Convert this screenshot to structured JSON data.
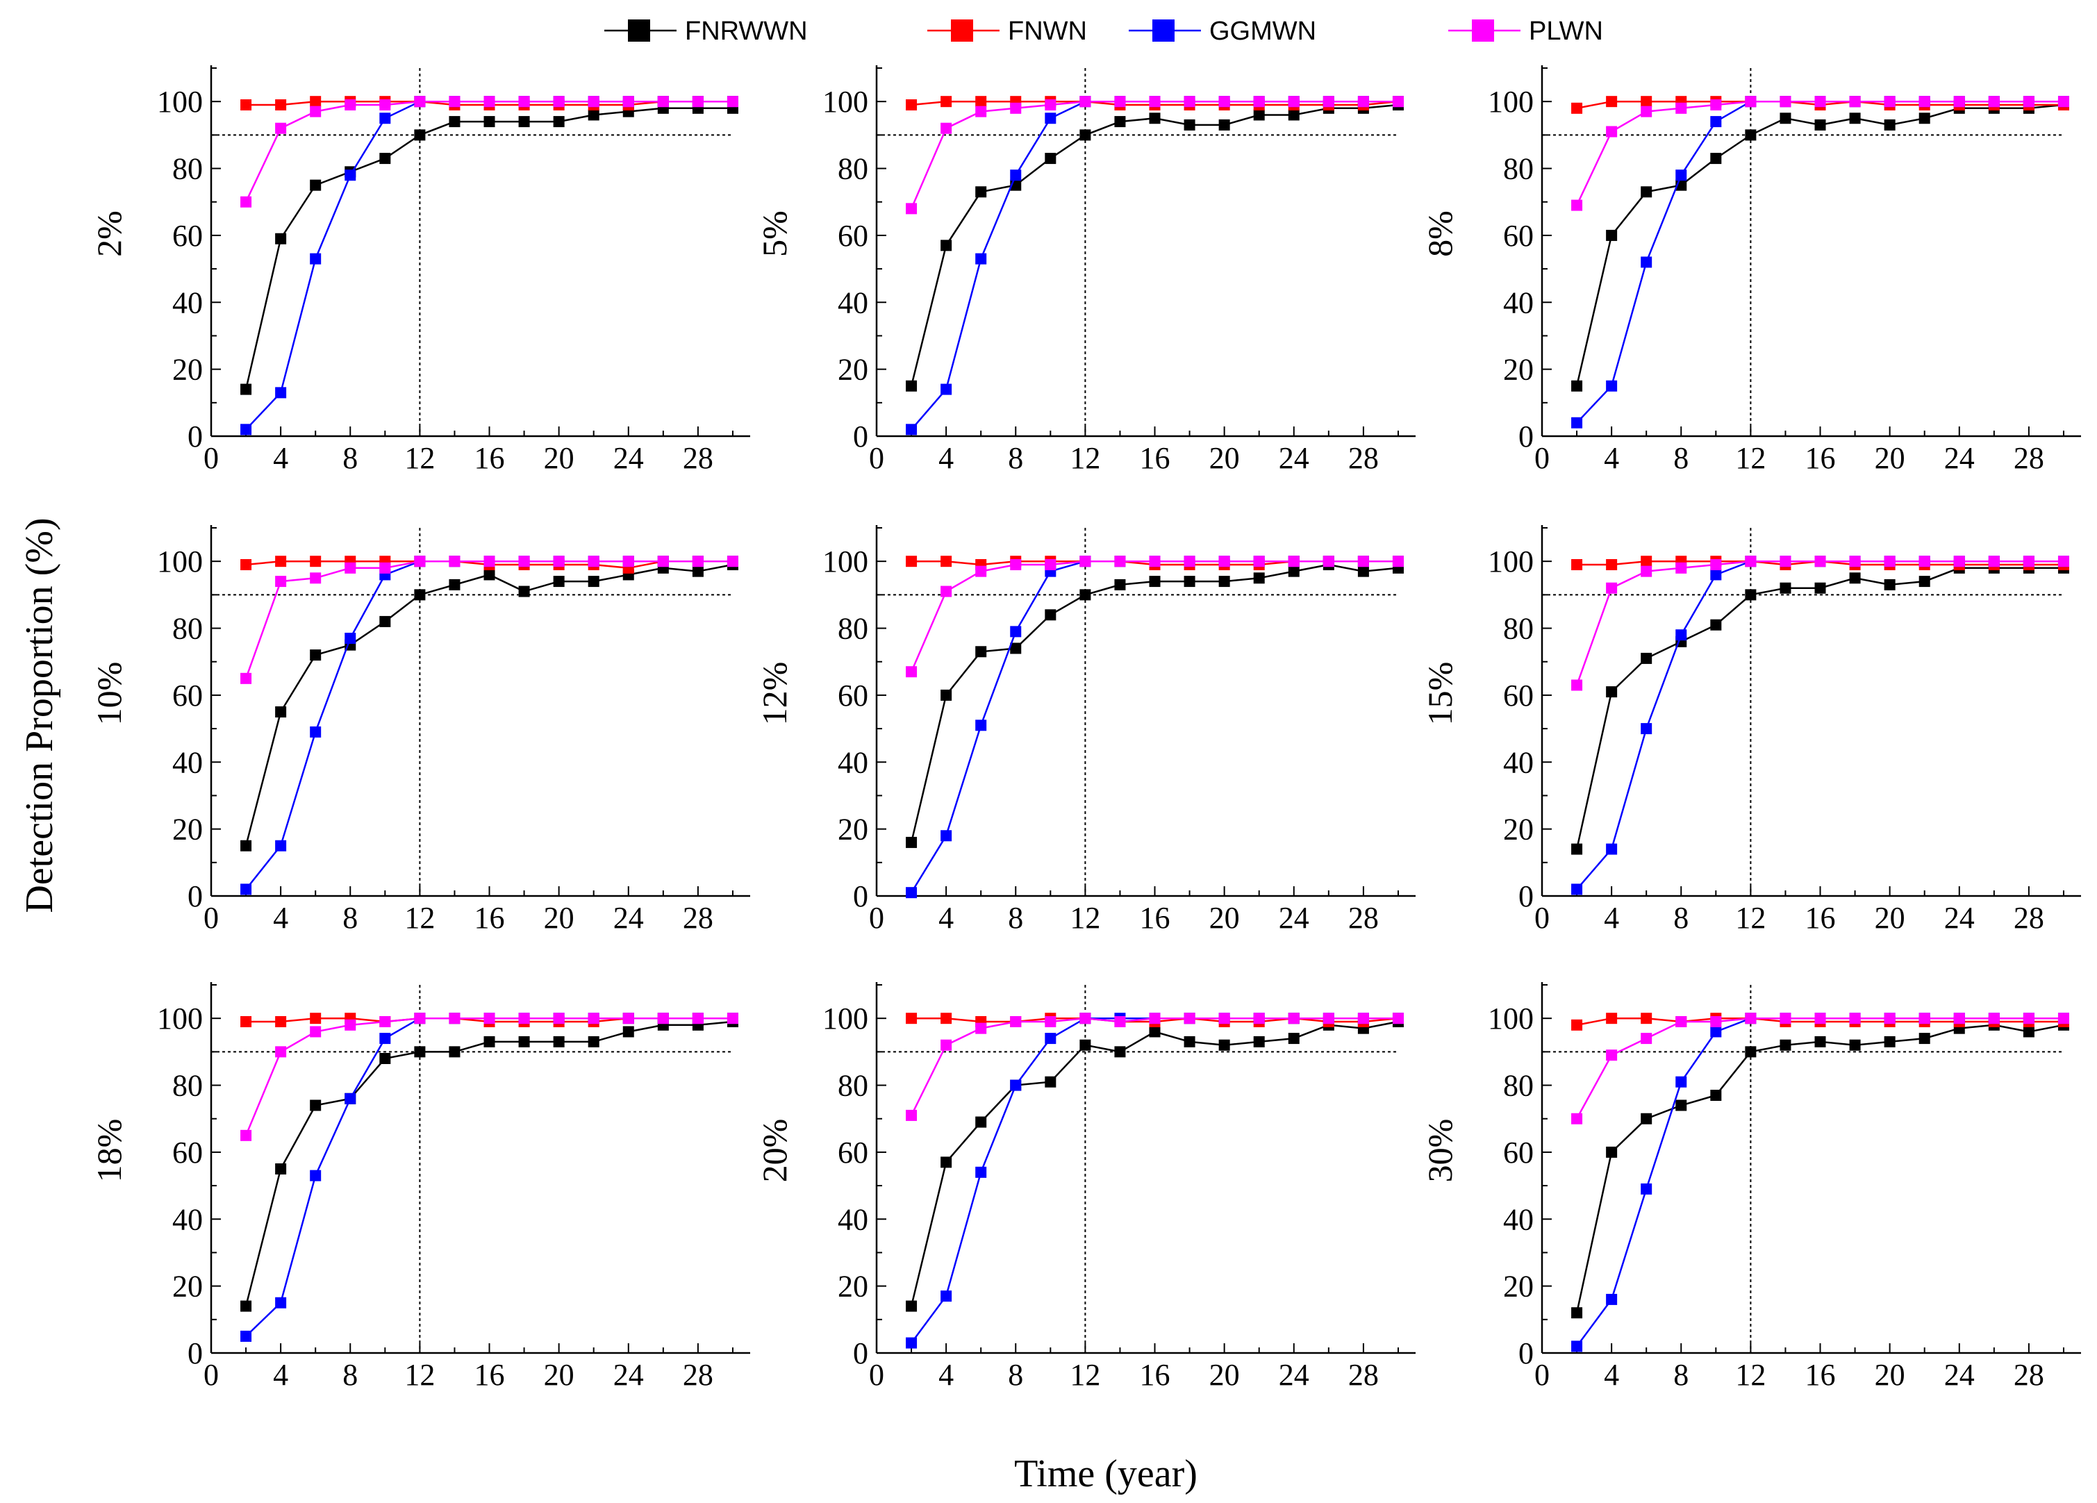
{
  "figure": {
    "ylabel": "Detection Proportion  (%)",
    "xlabel": "Time  (year)",
    "legend": [
      {
        "name": "FNRWWN",
        "color": "#000000"
      },
      {
        "name": "FNWN",
        "color": "#ff0000"
      },
      {
        "name": "GGMWN",
        "color": "#0000ff"
      },
      {
        "name": "PLWN",
        "color": "#ff00ff"
      }
    ]
  },
  "chart_data": [
    {
      "type": "line",
      "panel_label": "2%",
      "xlim": [
        0,
        31
      ],
      "ylim": [
        0,
        110
      ],
      "xticks": [
        0,
        4,
        8,
        12,
        16,
        20,
        24,
        28
      ],
      "yticks": [
        0,
        20,
        40,
        60,
        80,
        100
      ],
      "reference_lines": {
        "y": 90,
        "x": 12
      },
      "x": [
        2,
        4,
        6,
        8,
        10,
        12,
        14,
        16,
        18,
        20,
        22,
        24,
        26,
        28,
        30
      ],
      "series": [
        {
          "name": "FNRWWN",
          "color": "#000000",
          "values": [
            14,
            59,
            75,
            79,
            83,
            90,
            94,
            94,
            94,
            94,
            96,
            97,
            98,
            98,
            98
          ]
        },
        {
          "name": "FNWN",
          "color": "#ff0000",
          "values": [
            99,
            99,
            100,
            100,
            100,
            100,
            99,
            99,
            99,
            99,
            99,
            99,
            100,
            100,
            100
          ]
        },
        {
          "name": "GGMWN",
          "color": "#0000ff",
          "values": [
            2,
            13,
            53,
            78,
            95,
            100,
            100,
            100,
            100,
            100,
            100,
            100,
            100,
            100,
            100
          ]
        },
        {
          "name": "PLWN",
          "color": "#ff00ff",
          "values": [
            70,
            92,
            97,
            99,
            99,
            100,
            100,
            100,
            100,
            100,
            100,
            100,
            100,
            100,
            100
          ]
        }
      ]
    },
    {
      "type": "line",
      "panel_label": "5%",
      "xlim": [
        0,
        31
      ],
      "ylim": [
        0,
        110
      ],
      "xticks": [
        0,
        4,
        8,
        12,
        16,
        20,
        24,
        28
      ],
      "yticks": [
        0,
        20,
        40,
        60,
        80,
        100
      ],
      "reference_lines": {
        "y": 90,
        "x": 12
      },
      "x": [
        2,
        4,
        6,
        8,
        10,
        12,
        14,
        16,
        18,
        20,
        22,
        24,
        26,
        28,
        30
      ],
      "series": [
        {
          "name": "FNRWWN",
          "color": "#000000",
          "values": [
            15,
            57,
            73,
            75,
            83,
            90,
            94,
            95,
            93,
            93,
            96,
            96,
            98,
            98,
            99
          ]
        },
        {
          "name": "FNWN",
          "color": "#ff0000",
          "values": [
            99,
            100,
            100,
            100,
            100,
            100,
            99,
            99,
            99,
            99,
            99,
            99,
            99,
            99,
            100
          ]
        },
        {
          "name": "GGMWN",
          "color": "#0000ff",
          "values": [
            2,
            14,
            53,
            78,
            95,
            100,
            100,
            100,
            100,
            100,
            100,
            100,
            100,
            100,
            100
          ]
        },
        {
          "name": "PLWN",
          "color": "#ff00ff",
          "values": [
            68,
            92,
            97,
            98,
            99,
            100,
            100,
            100,
            100,
            100,
            100,
            100,
            100,
            100,
            100
          ]
        }
      ]
    },
    {
      "type": "line",
      "panel_label": "8%",
      "xlim": [
        0,
        31
      ],
      "ylim": [
        0,
        110
      ],
      "xticks": [
        0,
        4,
        8,
        12,
        16,
        20,
        24,
        28
      ],
      "yticks": [
        0,
        20,
        40,
        60,
        80,
        100
      ],
      "reference_lines": {
        "y": 90,
        "x": 12
      },
      "x": [
        2,
        4,
        6,
        8,
        10,
        12,
        14,
        16,
        18,
        20,
        22,
        24,
        26,
        28,
        30
      ],
      "series": [
        {
          "name": "FNRWWN",
          "color": "#000000",
          "values": [
            15,
            60,
            73,
            75,
            83,
            90,
            95,
            93,
            95,
            93,
            95,
            98,
            98,
            98,
            99
          ]
        },
        {
          "name": "FNWN",
          "color": "#ff0000",
          "values": [
            98,
            100,
            100,
            100,
            100,
            100,
            100,
            99,
            100,
            99,
            99,
            99,
            99,
            99,
            99
          ]
        },
        {
          "name": "GGMWN",
          "color": "#0000ff",
          "values": [
            4,
            15,
            52,
            78,
            94,
            100,
            100,
            100,
            100,
            100,
            100,
            100,
            100,
            100,
            100
          ]
        },
        {
          "name": "PLWN",
          "color": "#ff00ff",
          "values": [
            69,
            91,
            97,
            98,
            99,
            100,
            100,
            100,
            100,
            100,
            100,
            100,
            100,
            100,
            100
          ]
        }
      ]
    },
    {
      "type": "line",
      "panel_label": "10%",
      "xlim": [
        0,
        31
      ],
      "ylim": [
        0,
        110
      ],
      "xticks": [
        0,
        4,
        8,
        12,
        16,
        20,
        24,
        28
      ],
      "yticks": [
        0,
        20,
        40,
        60,
        80,
        100
      ],
      "reference_lines": {
        "y": 90,
        "x": 12
      },
      "x": [
        2,
        4,
        6,
        8,
        10,
        12,
        14,
        16,
        18,
        20,
        22,
        24,
        26,
        28,
        30
      ],
      "series": [
        {
          "name": "FNRWWN",
          "color": "#000000",
          "values": [
            15,
            55,
            72,
            75,
            82,
            90,
            93,
            96,
            91,
            94,
            94,
            96,
            98,
            97,
            99
          ]
        },
        {
          "name": "FNWN",
          "color": "#ff0000",
          "values": [
            99,
            100,
            100,
            100,
            100,
            100,
            100,
            99,
            99,
            99,
            99,
            98,
            100,
            100,
            100
          ]
        },
        {
          "name": "GGMWN",
          "color": "#0000ff",
          "values": [
            2,
            15,
            49,
            77,
            96,
            100,
            100,
            100,
            100,
            100,
            100,
            100,
            100,
            100,
            100
          ]
        },
        {
          "name": "PLWN",
          "color": "#ff00ff",
          "values": [
            65,
            94,
            95,
            98,
            98,
            100,
            100,
            100,
            100,
            100,
            100,
            100,
            100,
            100,
            100
          ]
        }
      ]
    },
    {
      "type": "line",
      "panel_label": "12%",
      "xlim": [
        0,
        31
      ],
      "ylim": [
        0,
        110
      ],
      "xticks": [
        0,
        4,
        8,
        12,
        16,
        20,
        24,
        28
      ],
      "yticks": [
        0,
        20,
        40,
        60,
        80,
        100
      ],
      "reference_lines": {
        "y": 90,
        "x": 12
      },
      "x": [
        2,
        4,
        6,
        8,
        10,
        12,
        14,
        16,
        18,
        20,
        22,
        24,
        26,
        28,
        30
      ],
      "series": [
        {
          "name": "FNRWWN",
          "color": "#000000",
          "values": [
            16,
            60,
            73,
            74,
            84,
            90,
            93,
            94,
            94,
            94,
            95,
            97,
            99,
            97,
            98
          ]
        },
        {
          "name": "FNWN",
          "color": "#ff0000",
          "values": [
            100,
            100,
            99,
            100,
            100,
            100,
            100,
            99,
            99,
            99,
            99,
            100,
            100,
            100,
            100
          ]
        },
        {
          "name": "GGMWN",
          "color": "#0000ff",
          "values": [
            1,
            18,
            51,
            79,
            97,
            100,
            100,
            100,
            100,
            100,
            100,
            100,
            100,
            100,
            100
          ]
        },
        {
          "name": "PLWN",
          "color": "#ff00ff",
          "values": [
            67,
            91,
            97,
            99,
            99,
            100,
            100,
            100,
            100,
            100,
            100,
            100,
            100,
            100,
            100
          ]
        }
      ]
    },
    {
      "type": "line",
      "panel_label": "15%",
      "xlim": [
        0,
        31
      ],
      "ylim": [
        0,
        110
      ],
      "xticks": [
        0,
        4,
        8,
        12,
        16,
        20,
        24,
        28
      ],
      "yticks": [
        0,
        20,
        40,
        60,
        80,
        100
      ],
      "reference_lines": {
        "y": 90,
        "x": 12
      },
      "x": [
        2,
        4,
        6,
        8,
        10,
        12,
        14,
        16,
        18,
        20,
        22,
        24,
        26,
        28,
        30
      ],
      "series": [
        {
          "name": "FNRWWN",
          "color": "#000000",
          "values": [
            14,
            61,
            71,
            76,
            81,
            90,
            92,
            92,
            95,
            93,
            94,
            98,
            98,
            98,
            98
          ]
        },
        {
          "name": "FNWN",
          "color": "#ff0000",
          "values": [
            99,
            99,
            100,
            100,
            100,
            100,
            99,
            100,
            99,
            99,
            99,
            99,
            99,
            99,
            99
          ]
        },
        {
          "name": "GGMWN",
          "color": "#0000ff",
          "values": [
            2,
            14,
            50,
            78,
            96,
            100,
            100,
            100,
            100,
            100,
            100,
            100,
            100,
            100,
            100
          ]
        },
        {
          "name": "PLWN",
          "color": "#ff00ff",
          "values": [
            63,
            92,
            97,
            98,
            99,
            100,
            100,
            100,
            100,
            100,
            100,
            100,
            100,
            100,
            100
          ]
        }
      ]
    },
    {
      "type": "line",
      "panel_label": "18%",
      "xlim": [
        0,
        31
      ],
      "ylim": [
        0,
        110
      ],
      "xticks": [
        0,
        4,
        8,
        12,
        16,
        20,
        24,
        28
      ],
      "yticks": [
        0,
        20,
        40,
        60,
        80,
        100
      ],
      "reference_lines": {
        "y": 90,
        "x": 12
      },
      "x": [
        2,
        4,
        6,
        8,
        10,
        12,
        14,
        16,
        18,
        20,
        22,
        24,
        26,
        28,
        30
      ],
      "series": [
        {
          "name": "FNRWWN",
          "color": "#000000",
          "values": [
            14,
            55,
            74,
            76,
            88,
            90,
            90,
            93,
            93,
            93,
            93,
            96,
            98,
            98,
            99
          ]
        },
        {
          "name": "FNWN",
          "color": "#ff0000",
          "values": [
            99,
            99,
            100,
            100,
            99,
            100,
            100,
            99,
            99,
            99,
            99,
            100,
            100,
            100,
            100
          ]
        },
        {
          "name": "GGMWN",
          "color": "#0000ff",
          "values": [
            5,
            15,
            53,
            76,
            94,
            100,
            100,
            100,
            100,
            100,
            100,
            100,
            100,
            100,
            100
          ]
        },
        {
          "name": "PLWN",
          "color": "#ff00ff",
          "values": [
            65,
            90,
            96,
            98,
            99,
            100,
            100,
            100,
            100,
            100,
            100,
            100,
            100,
            100,
            100
          ]
        }
      ]
    },
    {
      "type": "line",
      "panel_label": "20%",
      "xlim": [
        0,
        31
      ],
      "ylim": [
        0,
        110
      ],
      "xticks": [
        0,
        4,
        8,
        12,
        16,
        20,
        24,
        28
      ],
      "yticks": [
        0,
        20,
        40,
        60,
        80,
        100
      ],
      "reference_lines": {
        "y": 90,
        "x": 12
      },
      "x": [
        2,
        4,
        6,
        8,
        10,
        12,
        14,
        16,
        18,
        20,
        22,
        24,
        26,
        28,
        30
      ],
      "series": [
        {
          "name": "FNRWWN",
          "color": "#000000",
          "values": [
            14,
            57,
            69,
            80,
            81,
            92,
            90,
            96,
            93,
            92,
            93,
            94,
            98,
            97,
            99
          ]
        },
        {
          "name": "FNWN",
          "color": "#ff0000",
          "values": [
            100,
            100,
            99,
            99,
            100,
            100,
            99,
            99,
            100,
            99,
            99,
            100,
            99,
            99,
            100
          ]
        },
        {
          "name": "GGMWN",
          "color": "#0000ff",
          "values": [
            3,
            17,
            54,
            80,
            94,
            100,
            100,
            100,
            100,
            100,
            100,
            100,
            100,
            100,
            100
          ]
        },
        {
          "name": "PLWN",
          "color": "#ff00ff",
          "values": [
            71,
            92,
            97,
            99,
            99,
            100,
            99,
            100,
            100,
            100,
            100,
            100,
            100,
            100,
            100
          ]
        }
      ]
    },
    {
      "type": "line",
      "panel_label": "30%",
      "xlim": [
        0,
        31
      ],
      "ylim": [
        0,
        110
      ],
      "xticks": [
        0,
        4,
        8,
        12,
        16,
        20,
        24,
        28
      ],
      "yticks": [
        0,
        20,
        40,
        60,
        80,
        100
      ],
      "reference_lines": {
        "y": 90,
        "x": 12
      },
      "x": [
        2,
        4,
        6,
        8,
        10,
        12,
        14,
        16,
        18,
        20,
        22,
        24,
        26,
        28,
        30
      ],
      "series": [
        {
          "name": "FNRWWN",
          "color": "#000000",
          "values": [
            12,
            60,
            70,
            74,
            77,
            90,
            92,
            93,
            92,
            93,
            94,
            97,
            98,
            96,
            98
          ]
        },
        {
          "name": "FNWN",
          "color": "#ff0000",
          "values": [
            98,
            100,
            100,
            99,
            100,
            100,
            99,
            99,
            99,
            99,
            99,
            99,
            99,
            99,
            99
          ]
        },
        {
          "name": "GGMWN",
          "color": "#0000ff",
          "values": [
            2,
            16,
            49,
            81,
            96,
            100,
            100,
            100,
            100,
            100,
            100,
            100,
            100,
            100,
            100
          ]
        },
        {
          "name": "PLWN",
          "color": "#ff00ff",
          "values": [
            70,
            89,
            94,
            99,
            99,
            100,
            100,
            100,
            100,
            100,
            100,
            100,
            100,
            100,
            100
          ]
        }
      ]
    }
  ]
}
